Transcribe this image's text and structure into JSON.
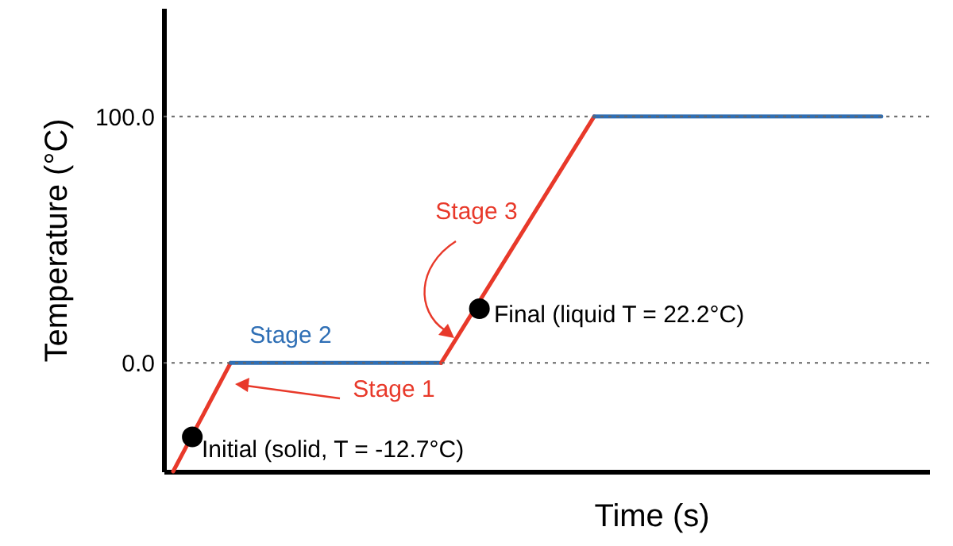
{
  "chart_data": {
    "type": "line",
    "xlabel": "Time (s)",
    "ylabel": "Temperature (°C)",
    "categories": [
      null,
      null,
      null,
      null,
      null,
      null,
      null,
      null,
      null,
      null,
      null,
      null,
      null,
      null,
      null,
      null,
      null,
      null,
      null,
      null,
      null,
      null,
      null,
      null,
      null,
      null,
      null,
      null,
      null,
      null,
      null,
      null,
      null,
      null,
      null,
      null,
      null,
      null,
      null,
      null
    ],
    "series": [
      {
        "type": "line",
        "color": "#e8392a",
        "values": [
          -44,
          null,
          null,
          0,
          null,
          null,
          null,
          null,
          null,
          null,
          null,
          null,
          null,
          null,
          null,
          null,
          null,
          null,
          null,
          null,
          null,
          null,
          null,
          null,
          null,
          null,
          null,
          null,
          null,
          null,
          null,
          null,
          null,
          null,
          null,
          null,
          null,
          null,
          null,
          null
        ]
      },
      {
        "type": "line",
        "color": "#2f6fb5",
        "values": [
          null,
          null,
          null,
          0,
          null,
          null,
          null,
          null,
          null,
          null,
          null,
          null,
          null,
          null,
          0,
          null,
          null,
          null,
          null,
          null,
          null,
          null,
          null,
          null,
          null,
          null,
          null,
          null,
          null,
          null,
          null,
          null,
          null,
          null,
          null,
          null,
          null,
          null,
          null,
          null
        ]
      },
      {
        "type": "line",
        "color": "#e8392a",
        "values": [
          null,
          null,
          null,
          null,
          null,
          null,
          null,
          null,
          null,
          null,
          null,
          null,
          null,
          null,
          0,
          null,
          null,
          null,
          null,
          null,
          null,
          null,
          100,
          null,
          null,
          null,
          null,
          null,
          null,
          null,
          null,
          null,
          null,
          null,
          null,
          null,
          null,
          null,
          null,
          null
        ]
      },
      {
        "type": "line",
        "color": "#2f6fb5",
        "values": [
          null,
          null,
          null,
          null,
          null,
          null,
          null,
          null,
          null,
          null,
          null,
          null,
          null,
          null,
          null,
          null,
          null,
          null,
          null,
          null,
          null,
          null,
          100,
          null,
          null,
          null,
          null,
          null,
          null,
          null,
          null,
          null,
          null,
          null,
          null,
          null,
          null,
          100,
          null,
          null
        ]
      },
      {
        "type": "scatter",
        "color": "#000000",
        "values": [
          null,
          -30,
          null,
          null,
          null,
          null,
          null,
          null,
          null,
          null,
          null,
          null,
          null,
          null,
          null,
          null,
          22,
          null,
          null,
          null,
          null,
          null,
          null,
          null,
          null,
          null,
          null,
          null,
          null,
          null,
          null,
          null,
          null,
          null,
          null,
          null,
          null,
          null,
          null,
          null
        ]
      }
    ],
    "ylim": [
      -44,
      144
    ],
    "yticks": [
      {
        "value": 0,
        "label": "0.0"
      },
      {
        "value": 100,
        "label": "100.0"
      }
    ],
    "tick_labels": "y",
    "ref_lines": [
      {
        "axis": "y",
        "value": 0,
        "line_style": "dotted",
        "color": "#666666"
      },
      {
        "axis": "y",
        "value": 100,
        "line_style": "dotted",
        "color": "#666666"
      }
    ],
    "annotations": [
      "Initial (solid, T = -12.7°C)",
      "Stage 1",
      "Stage 2",
      "Stage 3",
      "Final (liquid T = 22.2°C)"
    ]
  }
}
